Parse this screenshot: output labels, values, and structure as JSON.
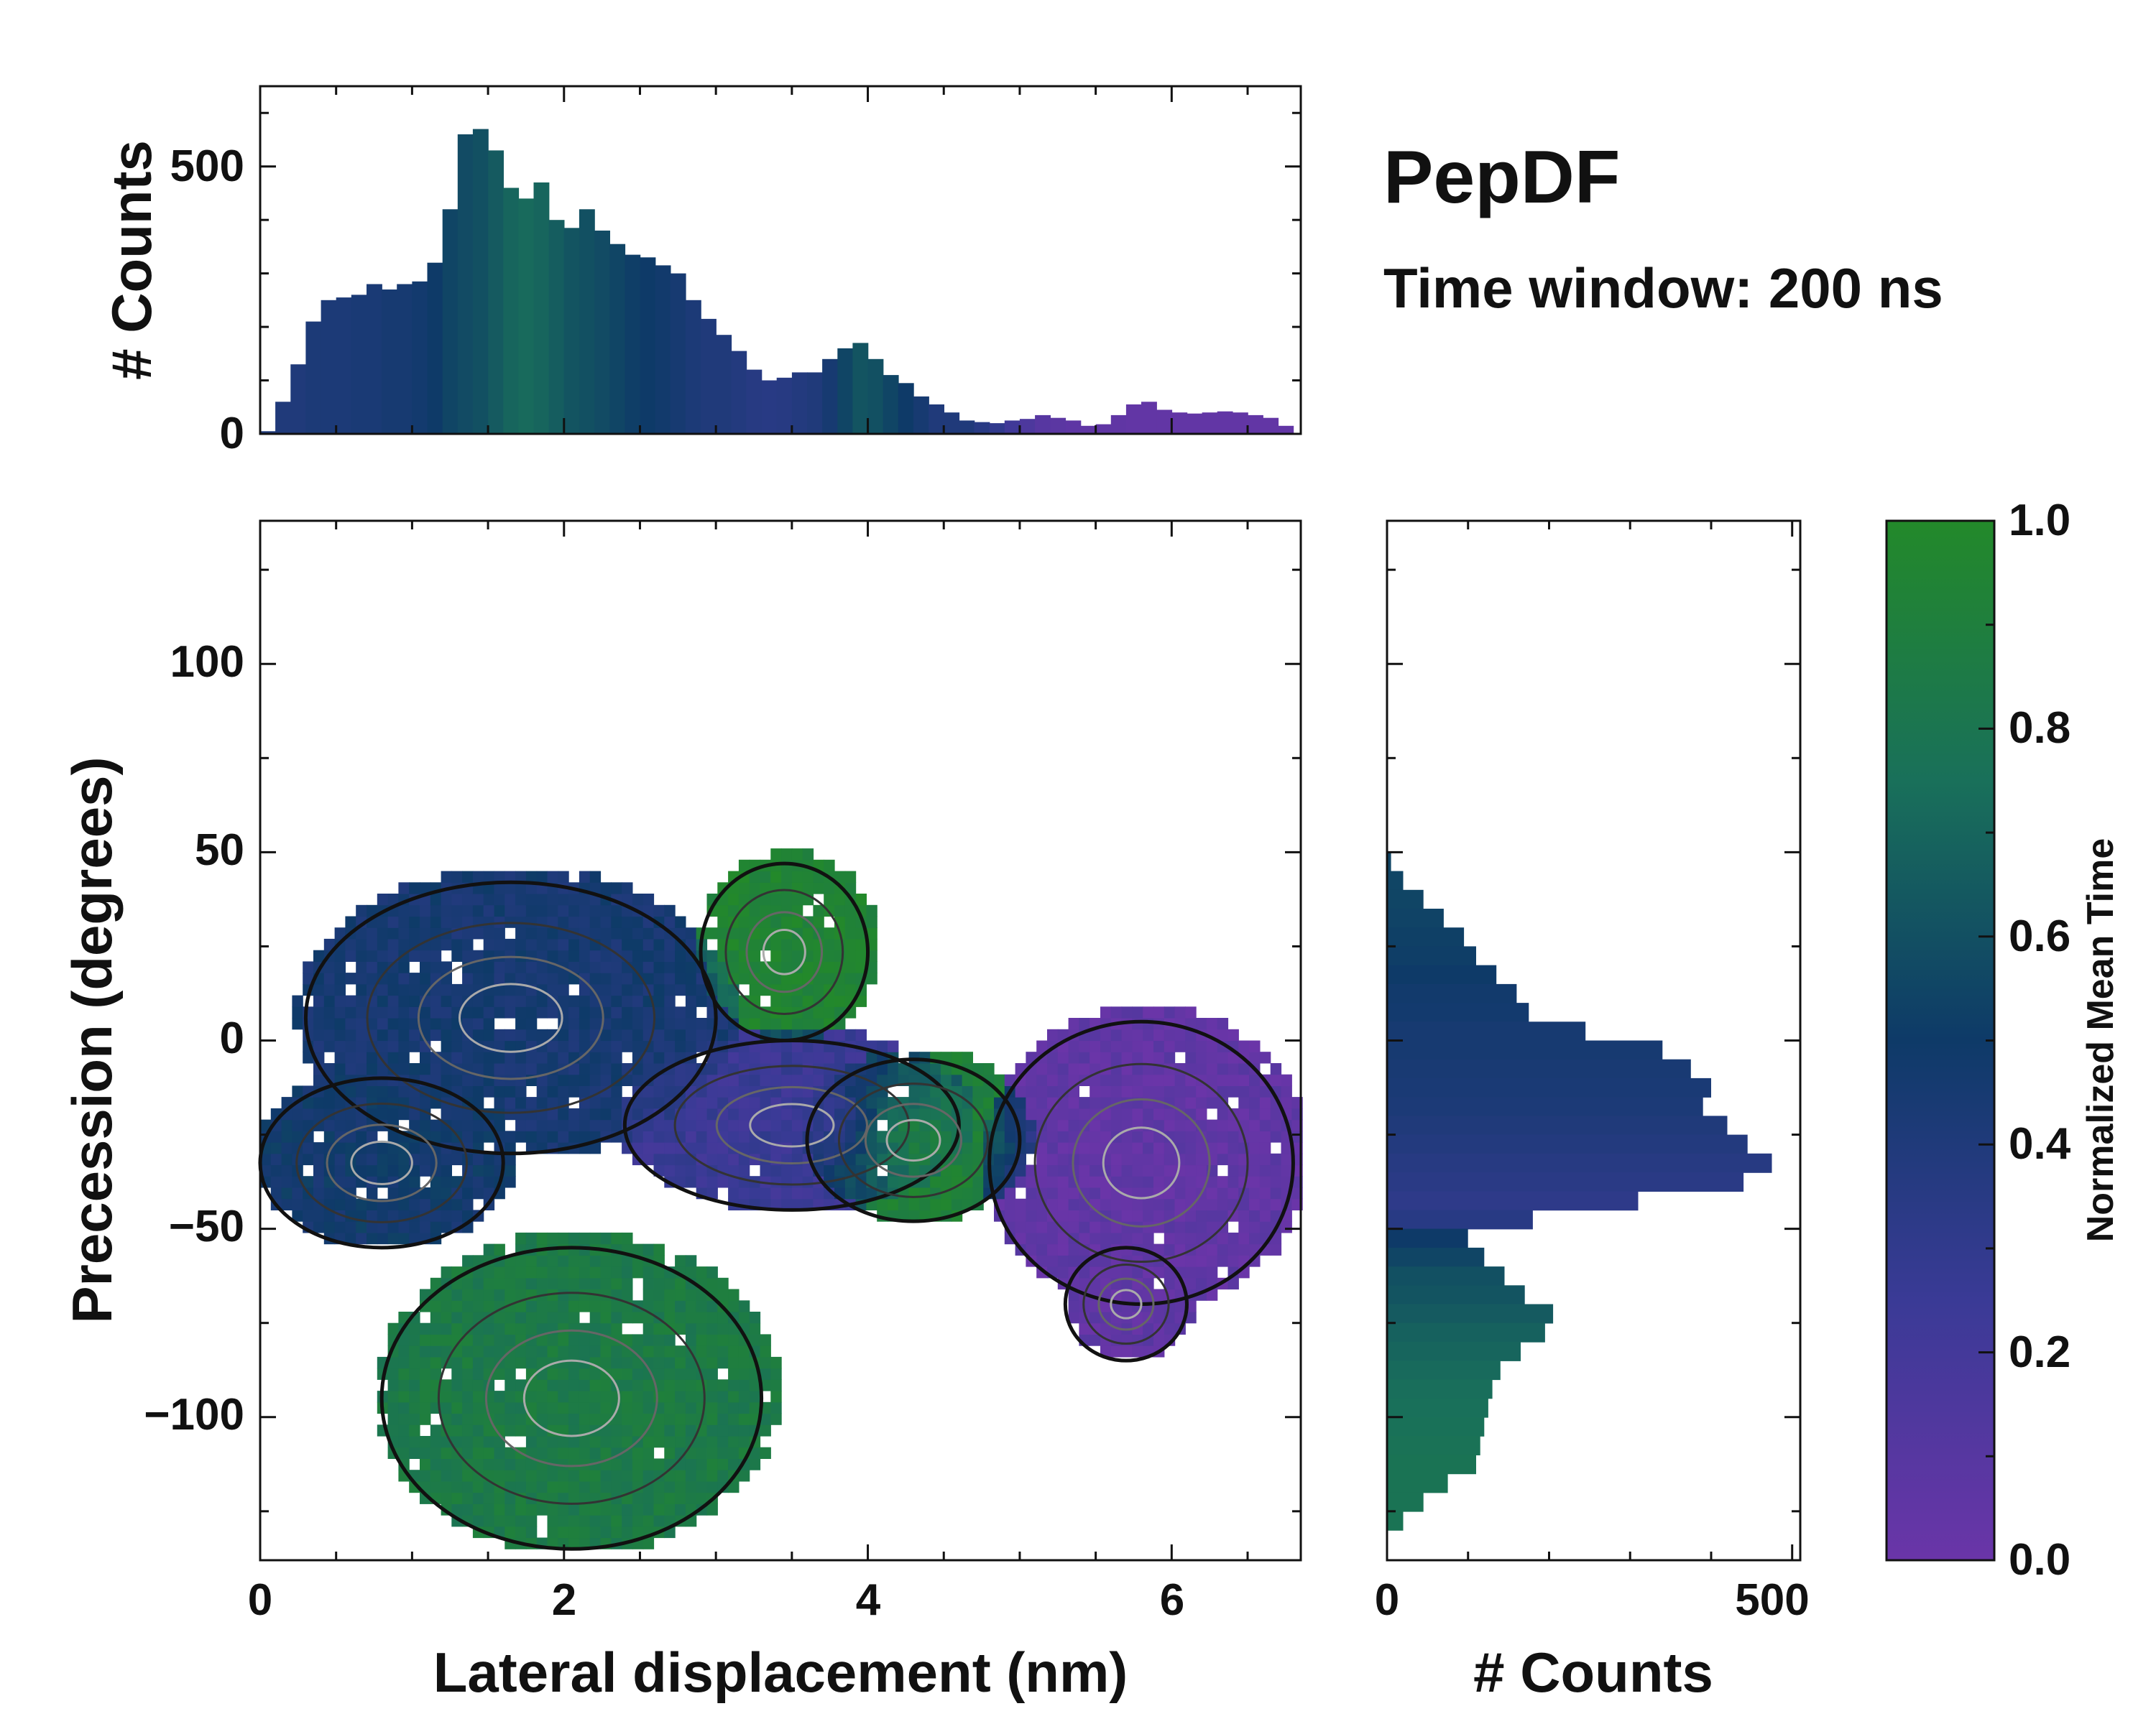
{
  "chart_data": {
    "type": "heatmap",
    "title": "PepDF",
    "subtitle": "Time window: 200 ns",
    "colors": {
      "low": "#6a35a8",
      "mid": "#0e3a68",
      "high": "#23892a",
      "contour": "#111111",
      "frame": "#111111"
    },
    "heatmap": {
      "xlabel": "Lateral displacement (nm)",
      "ylabel": "Precession (degrees)",
      "xlim": [
        0,
        6.85
      ],
      "ylim": [
        -138,
        138
      ],
      "xticks": [
        0,
        2,
        4,
        6
      ],
      "xtick_labels": [
        "0",
        "2",
        "4",
        "6"
      ],
      "yticks": [
        -100,
        -50,
        0,
        50,
        100
      ],
      "ytick_labels": [
        "−100",
        "−50",
        "0",
        "50",
        "100"
      ],
      "regions": [
        {
          "name": "upper-left blue lobe",
          "x": [
            0.3,
            3.0
          ],
          "y": [
            -30,
            42
          ],
          "mean_time": 0.45
        },
        {
          "name": "left dense core",
          "x": [
            0.0,
            1.6
          ],
          "y": [
            -55,
            -10
          ],
          "mean_time": 0.48
        },
        {
          "name": "center purple band",
          "x": [
            2.4,
            4.6
          ],
          "y": [
            -45,
            0
          ],
          "mean_time": 0.25
        },
        {
          "name": "green branch top",
          "x": [
            2.9,
            4.0
          ],
          "y": [
            0,
            47
          ],
          "mean_time": 0.95
        },
        {
          "name": "lower green lobe",
          "x": [
            0.8,
            3.3
          ],
          "y": [
            -135,
            -55
          ],
          "mean_time": 0.85
        },
        {
          "name": "right green patch",
          "x": [
            3.6,
            5.0
          ],
          "y": [
            -48,
            -5
          ],
          "mean_time": 0.92
        },
        {
          "name": "far right purple lobe",
          "x": [
            4.8,
            6.8
          ],
          "y": [
            -70,
            5
          ],
          "mean_time": 0.05
        },
        {
          "name": "right purple tail",
          "x": [
            5.3,
            6.1
          ],
          "y": [
            -85,
            -55
          ],
          "mean_time": 0.05
        }
      ]
    },
    "top_histogram": {
      "ylabel": "# Counts",
      "ylim": [
        0,
        650
      ],
      "yticks": [
        0,
        500
      ],
      "ytick_labels": [
        "0",
        "500"
      ],
      "x_range": [
        0,
        6.85
      ],
      "bins": [
        {
          "x": 0.0,
          "count": 5,
          "t": 0.4
        },
        {
          "x": 0.1,
          "count": 60,
          "t": 0.4
        },
        {
          "x": 0.2,
          "count": 130,
          "t": 0.4
        },
        {
          "x": 0.3,
          "count": 210,
          "t": 0.42
        },
        {
          "x": 0.4,
          "count": 250,
          "t": 0.42
        },
        {
          "x": 0.5,
          "count": 255,
          "t": 0.42
        },
        {
          "x": 0.6,
          "count": 260,
          "t": 0.43
        },
        {
          "x": 0.7,
          "count": 280,
          "t": 0.43
        },
        {
          "x": 0.8,
          "count": 270,
          "t": 0.45
        },
        {
          "x": 0.9,
          "count": 280,
          "t": 0.45
        },
        {
          "x": 1.0,
          "count": 285,
          "t": 0.47
        },
        {
          "x": 1.1,
          "count": 320,
          "t": 0.5
        },
        {
          "x": 1.2,
          "count": 420,
          "t": 0.55
        },
        {
          "x": 1.3,
          "count": 560,
          "t": 0.58
        },
        {
          "x": 1.4,
          "count": 570,
          "t": 0.6
        },
        {
          "x": 1.5,
          "count": 530,
          "t": 0.65
        },
        {
          "x": 1.6,
          "count": 460,
          "t": 0.7
        },
        {
          "x": 1.7,
          "count": 440,
          "t": 0.72
        },
        {
          "x": 1.8,
          "count": 470,
          "t": 0.7
        },
        {
          "x": 1.9,
          "count": 400,
          "t": 0.66
        },
        {
          "x": 2.0,
          "count": 385,
          "t": 0.62
        },
        {
          "x": 2.1,
          "count": 420,
          "t": 0.6
        },
        {
          "x": 2.2,
          "count": 380,
          "t": 0.58
        },
        {
          "x": 2.3,
          "count": 355,
          "t": 0.55
        },
        {
          "x": 2.4,
          "count": 335,
          "t": 0.52
        },
        {
          "x": 2.5,
          "count": 330,
          "t": 0.5
        },
        {
          "x": 2.6,
          "count": 315,
          "t": 0.48
        },
        {
          "x": 2.7,
          "count": 300,
          "t": 0.45
        },
        {
          "x": 2.8,
          "count": 250,
          "t": 0.42
        },
        {
          "x": 2.9,
          "count": 215,
          "t": 0.4
        },
        {
          "x": 3.0,
          "count": 185,
          "t": 0.4
        },
        {
          "x": 3.1,
          "count": 155,
          "t": 0.38
        },
        {
          "x": 3.2,
          "count": 120,
          "t": 0.36
        },
        {
          "x": 3.3,
          "count": 100,
          "t": 0.35
        },
        {
          "x": 3.4,
          "count": 105,
          "t": 0.36
        },
        {
          "x": 3.5,
          "count": 115,
          "t": 0.38
        },
        {
          "x": 3.6,
          "count": 115,
          "t": 0.4
        },
        {
          "x": 3.7,
          "count": 140,
          "t": 0.45
        },
        {
          "x": 3.8,
          "count": 160,
          "t": 0.55
        },
        {
          "x": 3.9,
          "count": 170,
          "t": 0.62
        },
        {
          "x": 4.0,
          "count": 140,
          "t": 0.6
        },
        {
          "x": 4.1,
          "count": 110,
          "t": 0.55
        },
        {
          "x": 4.2,
          "count": 95,
          "t": 0.5
        },
        {
          "x": 4.3,
          "count": 70,
          "t": 0.45
        },
        {
          "x": 4.4,
          "count": 55,
          "t": 0.4
        },
        {
          "x": 4.5,
          "count": 40,
          "t": 0.4
        },
        {
          "x": 4.6,
          "count": 25,
          "t": 0.4
        },
        {
          "x": 4.7,
          "count": 22,
          "t": 0.35
        },
        {
          "x": 4.8,
          "count": 20,
          "t": 0.3
        },
        {
          "x": 4.9,
          "count": 25,
          "t": 0.22
        },
        {
          "x": 5.0,
          "count": 28,
          "t": 0.15
        },
        {
          "x": 5.1,
          "count": 35,
          "t": 0.1
        },
        {
          "x": 5.2,
          "count": 30,
          "t": 0.08
        },
        {
          "x": 5.3,
          "count": 25,
          "t": 0.06
        },
        {
          "x": 5.4,
          "count": 15,
          "t": 0.05
        },
        {
          "x": 5.5,
          "count": 18,
          "t": 0.05
        },
        {
          "x": 5.6,
          "count": 35,
          "t": 0.05
        },
        {
          "x": 5.7,
          "count": 55,
          "t": 0.04
        },
        {
          "x": 5.8,
          "count": 60,
          "t": 0.04
        },
        {
          "x": 5.9,
          "count": 45,
          "t": 0.04
        },
        {
          "x": 6.0,
          "count": 40,
          "t": 0.04
        },
        {
          "x": 6.1,
          "count": 38,
          "t": 0.04
        },
        {
          "x": 6.2,
          "count": 40,
          "t": 0.04
        },
        {
          "x": 6.3,
          "count": 42,
          "t": 0.04
        },
        {
          "x": 6.4,
          "count": 40,
          "t": 0.04
        },
        {
          "x": 6.5,
          "count": 35,
          "t": 0.04
        },
        {
          "x": 6.6,
          "count": 30,
          "t": 0.04
        },
        {
          "x": 6.7,
          "count": 15,
          "t": 0.04
        }
      ]
    },
    "right_histogram": {
      "xlabel": "# Counts",
      "xlim": [
        0,
        510
      ],
      "xticks": [
        0,
        500
      ],
      "xtick_labels": [
        "0",
        "500"
      ],
      "y_range": [
        -138,
        138
      ],
      "bins": [
        {
          "y": 45,
          "count": 5,
          "t": 0.55
        },
        {
          "y": 40,
          "count": 20,
          "t": 0.55
        },
        {
          "y": 35,
          "count": 45,
          "t": 0.55
        },
        {
          "y": 30,
          "count": 70,
          "t": 0.54
        },
        {
          "y": 25,
          "count": 95,
          "t": 0.53
        },
        {
          "y": 20,
          "count": 110,
          "t": 0.52
        },
        {
          "y": 15,
          "count": 135,
          "t": 0.5
        },
        {
          "y": 10,
          "count": 160,
          "t": 0.48
        },
        {
          "y": 5,
          "count": 175,
          "t": 0.47
        },
        {
          "y": 0,
          "count": 245,
          "t": 0.45
        },
        {
          "y": -5,
          "count": 340,
          "t": 0.45
        },
        {
          "y": -10,
          "count": 375,
          "t": 0.44
        },
        {
          "y": -15,
          "count": 400,
          "t": 0.43
        },
        {
          "y": -20,
          "count": 390,
          "t": 0.42
        },
        {
          "y": -25,
          "count": 420,
          "t": 0.4
        },
        {
          "y": -30,
          "count": 445,
          "t": 0.38
        },
        {
          "y": -35,
          "count": 475,
          "t": 0.36
        },
        {
          "y": -40,
          "count": 440,
          "t": 0.34
        },
        {
          "y": -45,
          "count": 310,
          "t": 0.32
        },
        {
          "y": -50,
          "count": 180,
          "t": 0.35
        },
        {
          "y": -55,
          "count": 100,
          "t": 0.5
        },
        {
          "y": -60,
          "count": 120,
          "t": 0.55
        },
        {
          "y": -65,
          "count": 145,
          "t": 0.6
        },
        {
          "y": -70,
          "count": 170,
          "t": 0.62
        },
        {
          "y": -75,
          "count": 205,
          "t": 0.65
        },
        {
          "y": -80,
          "count": 195,
          "t": 0.68
        },
        {
          "y": -85,
          "count": 165,
          "t": 0.7
        },
        {
          "y": -90,
          "count": 140,
          "t": 0.72
        },
        {
          "y": -95,
          "count": 130,
          "t": 0.74
        },
        {
          "y": -100,
          "count": 125,
          "t": 0.75
        },
        {
          "y": -105,
          "count": 120,
          "t": 0.76
        },
        {
          "y": -110,
          "count": 115,
          "t": 0.77
        },
        {
          "y": -115,
          "count": 110,
          "t": 0.78
        },
        {
          "y": -120,
          "count": 75,
          "t": 0.78
        },
        {
          "y": -125,
          "count": 45,
          "t": 0.78
        },
        {
          "y": -130,
          "count": 20,
          "t": 0.78
        }
      ]
    },
    "colorbar": {
      "label": "Normalized Mean Time",
      "range": [
        0,
        1
      ],
      "ticks": [
        0.0,
        0.2,
        0.4,
        0.6,
        0.8,
        1.0
      ],
      "tick_labels": [
        "0.0",
        "0.2",
        "0.4",
        "0.6",
        "0.8",
        "1.0"
      ]
    }
  }
}
